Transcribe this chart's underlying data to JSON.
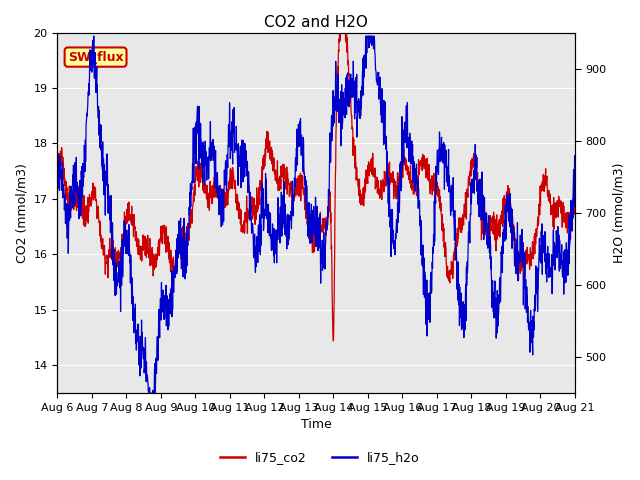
{
  "title": "CO2 and H2O",
  "xlabel": "Time",
  "ylabel_left": "CO2 (mmol/m3)",
  "ylabel_right": "H2O (mmol/m3)",
  "ylim_left": [
    13.5,
    20.0
  ],
  "ylim_right": [
    450,
    950
  ],
  "x_start": 0,
  "x_end": 15,
  "x_ticks": [
    0,
    1,
    2,
    3,
    4,
    5,
    6,
    7,
    8,
    9,
    10,
    11,
    12,
    13,
    14,
    15
  ],
  "x_tick_labels": [
    "Aug 6",
    "Aug 7",
    "Aug 8",
    "Aug 9",
    "Aug 10",
    "Aug 11",
    "Aug 12",
    "Aug 13",
    "Aug 14",
    "Aug 15",
    "Aug 16",
    "Aug 17",
    "Aug 18",
    "Aug 19",
    "Aug 20",
    "Aug 21"
  ],
  "co2_color": "#cc0000",
  "h2o_color": "#0000cc",
  "plot_bg_color": "#e8e8e8",
  "fig_bg_color": "#ffffff",
  "grid_color": "#ffffff",
  "legend_label_co2": "li75_co2",
  "legend_label_h2o": "li75_h2o",
  "annotation_box_text": "SW_flux",
  "annotation_box_facecolor": "#ffff99",
  "annotation_box_edgecolor": "#cc0000",
  "annotation_box_textcolor": "#cc0000",
  "title_fontsize": 11,
  "label_fontsize": 9,
  "tick_fontsize": 8,
  "legend_fontsize": 9,
  "linewidth": 0.9
}
